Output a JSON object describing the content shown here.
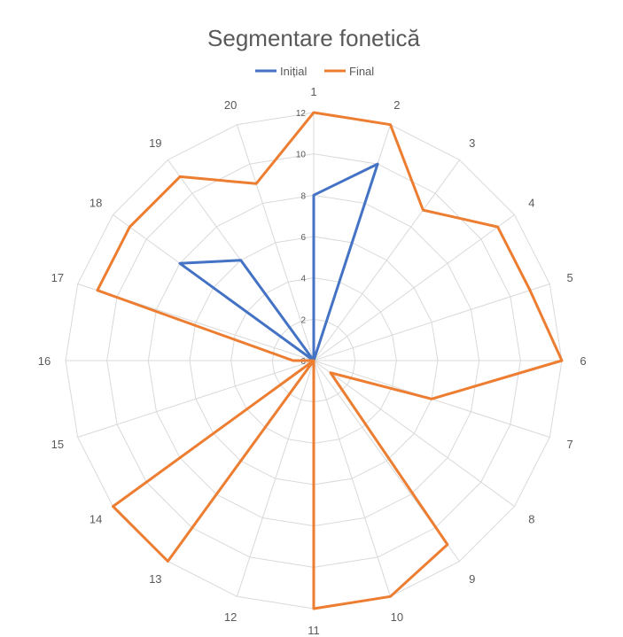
{
  "chart_data": {
    "type": "radar",
    "title": "Segmentare fonetică",
    "categories": [
      "1",
      "2",
      "3",
      "4",
      "5",
      "6",
      "7",
      "8",
      "9",
      "10",
      "11",
      "12",
      "13",
      "14",
      "15",
      "16",
      "17",
      "18",
      "19",
      "20"
    ],
    "rlim": [
      0,
      12
    ],
    "ticks": [
      "0",
      "2",
      "4",
      "6",
      "8",
      "10",
      "12"
    ],
    "tick_values": [
      0,
      2,
      4,
      6,
      8,
      10,
      12
    ],
    "grid": true,
    "legend_position": "top",
    "series": [
      {
        "name": "Inițial",
        "color": "#4472C4",
        "values": [
          8,
          10,
          0,
          0,
          0,
          0,
          0,
          0,
          0,
          0,
          0,
          0,
          0,
          0,
          0,
          0,
          0,
          8,
          6,
          0
        ]
      },
      {
        "name": "Final",
        "color": "#ED7D31",
        "values": [
          12,
          12,
          9,
          11,
          11,
          12,
          6,
          1,
          11,
          12,
          12,
          0,
          12,
          12,
          0,
          1,
          11,
          11,
          11,
          9
        ]
      }
    ]
  }
}
